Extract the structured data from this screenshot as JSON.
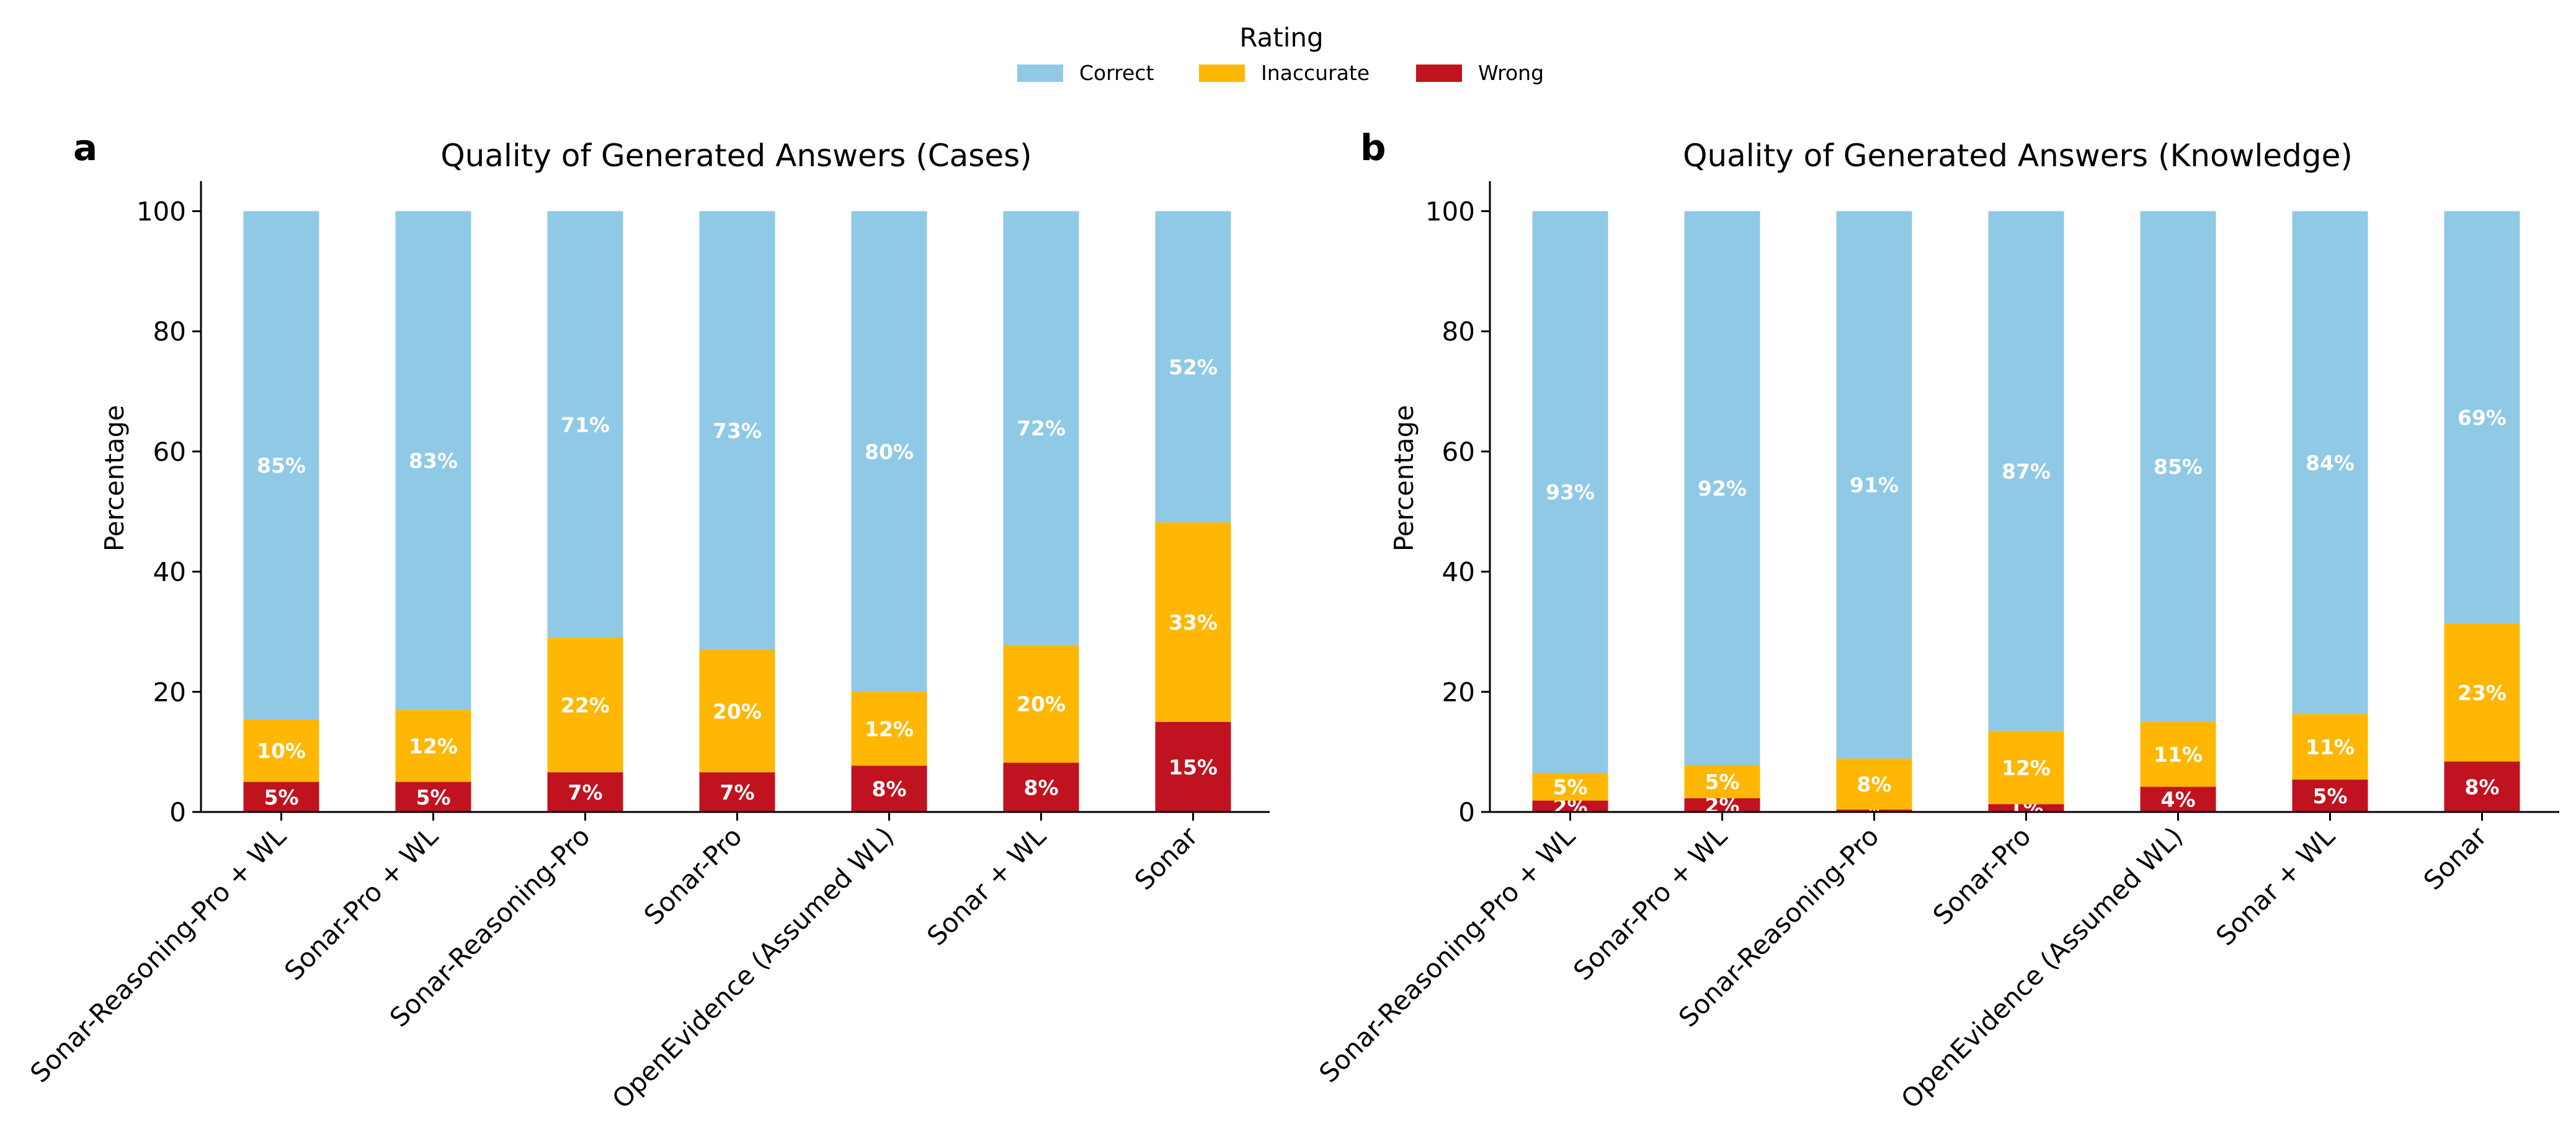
{
  "legend": {
    "title": "Rating",
    "items": [
      {
        "label": "Correct",
        "color": "#8fc9e5"
      },
      {
        "label": "Inaccurate",
        "color": "#ffb703"
      },
      {
        "label": "Wrong",
        "color": "#c1121f"
      }
    ]
  },
  "chart_data": [
    {
      "panel": "a",
      "type": "bar",
      "stacked": true,
      "title": "Quality of Generated Answers (Cases)",
      "ylabel": "Percentage",
      "xlabel": "",
      "ylim": [
        0,
        105
      ],
      "yticks": [
        0,
        20,
        40,
        60,
        80,
        100
      ],
      "categories": [
        "Sonar-Reasoning-Pro + WL",
        "Sonar-Pro + WL",
        "Sonar-Reasoning-Pro",
        "Sonar-Pro",
        "OpenEvidence (Assumed WL)",
        "Sonar + WL",
        "Sonar"
      ],
      "series": [
        {
          "name": "Wrong",
          "color": "#c1121f",
          "values": [
            5,
            5,
            6.6,
            6.6,
            7.7,
            8.2,
            15
          ],
          "labels": [
            "5%",
            "5%",
            "7%",
            "7%",
            "8%",
            "8%",
            "15%"
          ]
        },
        {
          "name": "Inaccurate",
          "color": "#ffb703",
          "values": [
            10.4,
            12,
            22.4,
            20.4,
            12.3,
            19.6,
            33.2
          ],
          "labels": [
            "10%",
            "12%",
            "22%",
            "20%",
            "12%",
            "20%",
            "33%"
          ]
        },
        {
          "name": "Correct",
          "color": "#8fc9e5",
          "values": [
            84.6,
            83,
            71,
            73,
            80,
            72.2,
            51.8
          ],
          "labels": [
            "85%",
            "83%",
            "71%",
            "73%",
            "80%",
            "72%",
            "52%"
          ]
        }
      ]
    },
    {
      "panel": "b",
      "type": "bar",
      "stacked": true,
      "title": "Quality of Generated Answers (Knowledge)",
      "ylabel": "Percentage",
      "xlabel": "",
      "ylim": [
        0,
        105
      ],
      "yticks": [
        0,
        20,
        40,
        60,
        80,
        100
      ],
      "categories": [
        "Sonar-Reasoning-Pro + WL",
        "Sonar-Pro + WL",
        "Sonar-Reasoning-Pro",
        "Sonar-Pro",
        "OpenEvidence (Assumed WL)",
        "Sonar + WL",
        "Sonar"
      ],
      "series": [
        {
          "name": "Wrong",
          "color": "#c1121f",
          "values": [
            1.9,
            2.3,
            0.4,
            1.3,
            4.2,
            5.4,
            8.4
          ],
          "labels": [
            "2%",
            "2%",
            "*",
            "1%",
            "4%",
            "5%",
            "8%"
          ]
        },
        {
          "name": "Inaccurate",
          "color": "#ffb703",
          "values": [
            4.6,
            5.5,
            8.5,
            12.2,
            10.8,
            10.9,
            22.9
          ],
          "labels": [
            "5%",
            "5%",
            "8%",
            "12%",
            "11%",
            "11%",
            "23%"
          ]
        },
        {
          "name": "Correct",
          "color": "#8fc9e5",
          "values": [
            93.5,
            92.2,
            91.1,
            86.5,
            85,
            83.7,
            68.7
          ],
          "labels": [
            "93%",
            "92%",
            "91%",
            "87%",
            "85%",
            "84%",
            "69%"
          ]
        }
      ]
    }
  ]
}
